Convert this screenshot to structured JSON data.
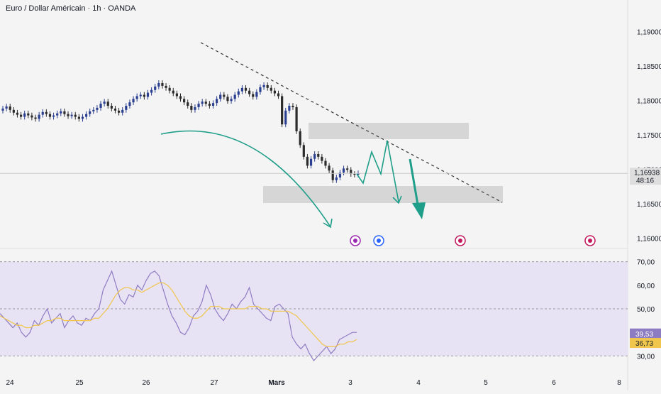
{
  "header": {
    "title": "Euro / Dollar Américain · 1h · OANDA"
  },
  "price_axis": {
    "labels": [
      "1,19000",
      "1,18500",
      "1,18000",
      "1,17500",
      "1,17000",
      "1,16500",
      "1,16000"
    ],
    "current_price": "1,16938",
    "countdown": "48:16"
  },
  "rsi_axis": {
    "labels": [
      "70,00",
      "60,00",
      "50,00",
      "40,00",
      "30,00"
    ],
    "rsi_value": "39,53",
    "rsi_ma_value": "36,73"
  },
  "time_axis": {
    "labels": [
      "24",
      "25",
      "26",
      "27",
      "Mars",
      "3",
      "4",
      "5",
      "6",
      "8"
    ]
  },
  "events": [
    {
      "icon": "lightning-event-icon",
      "color": "#9c27b0"
    },
    {
      "icon": "eu-flag-event-icon",
      "color": "#2962ff"
    },
    {
      "icon": "us-flag-event-icon",
      "color": "#c2185b"
    },
    {
      "icon": "us-flag-event-icon",
      "color": "#c2185b"
    }
  ],
  "colors": {
    "bull": "#2a3f8f",
    "bear": "#2b2b2b",
    "arrow": "#1f9e89",
    "rsi": "#8e7cc3",
    "rsi_ma": "#f0c64c",
    "zone": "#d6d6d6"
  },
  "chart_data": {
    "type": "candlestick",
    "price_ylim": [
      1.159,
      1.1925
    ],
    "rsi_ylim": [
      25,
      75
    ],
    "price_close_series": [
      1.1788,
      1.1791,
      1.1786,
      1.1782,
      1.1779,
      1.1776,
      1.1781,
      1.1778,
      1.1775,
      1.1773,
      1.1779,
      1.1783,
      1.178,
      1.1776,
      1.1778,
      1.1781,
      1.1784,
      1.178,
      1.1777,
      1.1779,
      1.1776,
      1.1773,
      1.1776,
      1.178,
      1.1784,
      1.1786,
      1.1789,
      1.1795,
      1.1798,
      1.1792,
      1.1788,
      1.1785,
      1.1782,
      1.1786,
      1.1792,
      1.1797,
      1.1802,
      1.1806,
      1.1808,
      1.1805,
      1.1811,
      1.1815,
      1.182,
      1.1825,
      1.1821,
      1.1818,
      1.1814,
      1.181,
      1.1806,
      1.1802,
      1.1797,
      1.1792,
      1.1786,
      1.179,
      1.1795,
      1.1798,
      1.1795,
      1.1792,
      1.1796,
      1.1802,
      1.1808,
      1.1805,
      1.1799,
      1.1802,
      1.1808,
      1.1813,
      1.1818,
      1.1814,
      1.1809,
      1.1805,
      1.1812,
      1.1819,
      1.1822,
      1.1818,
      1.1814,
      1.181,
      1.1806,
      1.1765,
      1.1785,
      1.1792,
      1.179,
      1.1755,
      1.1735,
      1.1718,
      1.1705,
      1.1715,
      1.1722,
      1.1718,
      1.1712,
      1.1705,
      1.1698,
      1.1684,
      1.1688,
      1.1695,
      1.1701,
      1.1699,
      1.1693,
      1.1692,
      1.1694
    ],
    "rsi_series": [
      48,
      46,
      44,
      42,
      44,
      40,
      38,
      40,
      45,
      43,
      47,
      50,
      44,
      46,
      48,
      42,
      45,
      47,
      44,
      43,
      46,
      45,
      48,
      50,
      58,
      62,
      66,
      60,
      54,
      52,
      56,
      55,
      60,
      58,
      62,
      65,
      66,
      64,
      58,
      52,
      47,
      44,
      40,
      39,
      42,
      47,
      49,
      53,
      60,
      56,
      50,
      47,
      45,
      48,
      52,
      50,
      53,
      55,
      59,
      52,
      50,
      48,
      46,
      45,
      51,
      52,
      50,
      48,
      38,
      35,
      33,
      35,
      31,
      28,
      30,
      32,
      34,
      31,
      33,
      37,
      38,
      39,
      40,
      40
    ],
    "rsi_ma_series": [
      47,
      46,
      45,
      44,
      43,
      43,
      42,
      42,
      43,
      43,
      44,
      45,
      45,
      46,
      46,
      45,
      45,
      45,
      45,
      45,
      45,
      45,
      46,
      46,
      48,
      50,
      53,
      56,
      58,
      59,
      59,
      58,
      58,
      57,
      58,
      59,
      60,
      61,
      61,
      60,
      58,
      55,
      52,
      49,
      47,
      46,
      46,
      47,
      49,
      51,
      51,
      51,
      50,
      50,
      50,
      50,
      50,
      50,
      51,
      51,
      51,
      50,
      50,
      49,
      49,
      49,
      49,
      49,
      48,
      47,
      45,
      43,
      41,
      39,
      37,
      35,
      34,
      34,
      34,
      35,
      35,
      36,
      36,
      37
    ]
  }
}
